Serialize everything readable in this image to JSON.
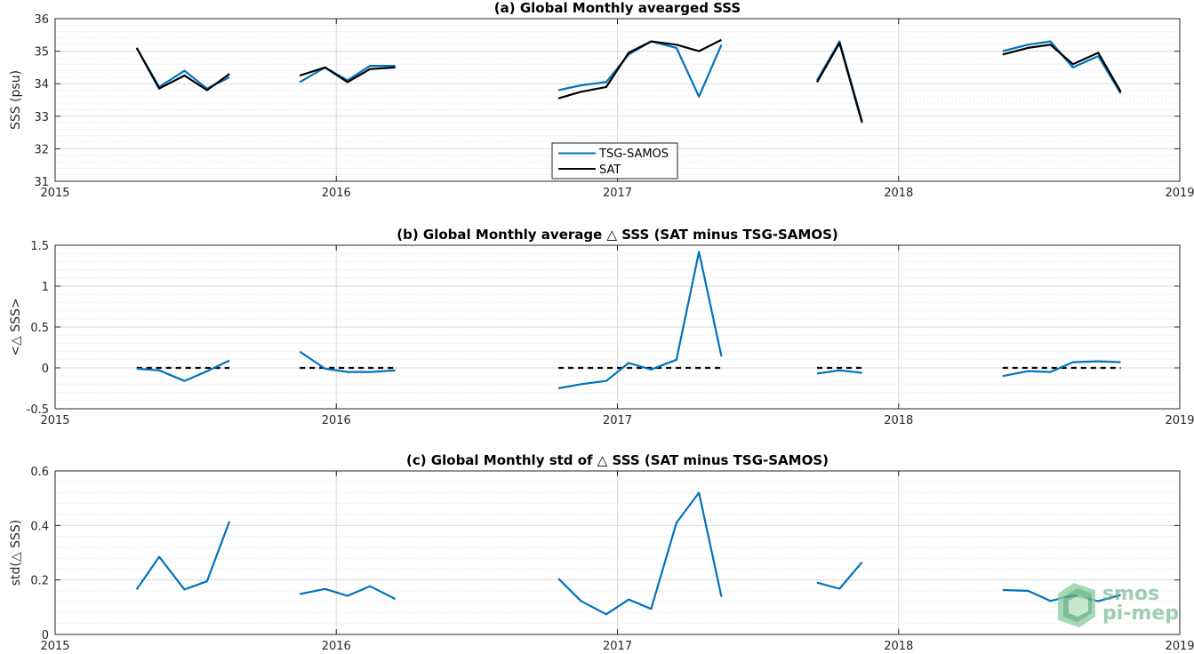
{
  "colors": {
    "tsg": "#0072BD",
    "sat": "#000000",
    "grid_major": "#d9d9d9",
    "grid_minor": "#ececec",
    "axis": "#262626",
    "logo": "#5fae7c"
  },
  "logo": {
    "line1": "smos",
    "line2": "pi-mep"
  },
  "chart_data": [
    {
      "type": "line",
      "title": "(a) Global Monthly avearged SSS",
      "xlabel": "",
      "ylabel": "SSS (psu)",
      "xlim": [
        2015,
        2019
      ],
      "ylim": [
        31,
        36
      ],
      "xticks": [
        2015,
        2016,
        2017,
        2018,
        2019
      ],
      "xticklabels": [
        "2015",
        "2016",
        "2017",
        "2018",
        "2019"
      ],
      "yticks": [
        31,
        32,
        33,
        34,
        35,
        36
      ],
      "yticklabels": [
        "31",
        "32",
        "33",
        "34",
        "35",
        "36"
      ],
      "grid": true,
      "legend": {
        "placement": "lower-center",
        "entries": [
          "TSG-SAMOS",
          "SAT"
        ]
      },
      "series": [
        {
          "name": "TSG-SAMOS",
          "color": "#0072BD",
          "segments": [
            [
              [
                2015.29,
                35.1
              ],
              [
                2015.37,
                33.9
              ],
              [
                2015.46,
                34.4
              ],
              [
                2015.54,
                33.85
              ],
              [
                2015.62,
                34.2
              ]
            ],
            [
              [
                2015.87,
                34.05
              ],
              [
                2015.96,
                34.5
              ],
              [
                2016.04,
                34.1
              ],
              [
                2016.12,
                34.55
              ],
              [
                2016.21,
                34.55
              ]
            ],
            [
              [
                2016.79,
                33.8
              ],
              [
                2016.87,
                33.95
              ],
              [
                2016.96,
                34.05
              ],
              [
                2017.04,
                34.9
              ],
              [
                2017.12,
                35.3
              ],
              [
                2017.21,
                35.1
              ],
              [
                2017.29,
                33.6
              ],
              [
                2017.37,
                35.2
              ]
            ],
            [
              [
                2017.71,
                34.1
              ],
              [
                2017.79,
                35.3
              ],
              [
                2017.87,
                32.85
              ]
            ],
            [
              [
                2018.37,
                35.0
              ],
              [
                2018.46,
                35.2
              ],
              [
                2018.54,
                35.3
              ],
              [
                2018.62,
                34.5
              ],
              [
                2018.71,
                34.85
              ],
              [
                2018.79,
                33.7
              ]
            ]
          ]
        },
        {
          "name": "SAT",
          "color": "#000000",
          "segments": [
            [
              [
                2015.29,
                35.1
              ],
              [
                2015.37,
                33.85
              ],
              [
                2015.46,
                34.25
              ],
              [
                2015.54,
                33.8
              ],
              [
                2015.62,
                34.3
              ]
            ],
            [
              [
                2015.87,
                34.25
              ],
              [
                2015.96,
                34.5
              ],
              [
                2016.04,
                34.05
              ],
              [
                2016.12,
                34.45
              ],
              [
                2016.21,
                34.5
              ]
            ],
            [
              [
                2016.79,
                33.55
              ],
              [
                2016.87,
                33.75
              ],
              [
                2016.96,
                33.9
              ],
              [
                2017.04,
                34.95
              ],
              [
                2017.12,
                35.3
              ],
              [
                2017.21,
                35.2
              ],
              [
                2017.29,
                35.0
              ],
              [
                2017.37,
                35.35
              ]
            ],
            [
              [
                2017.71,
                34.05
              ],
              [
                2017.79,
                35.25
              ],
              [
                2017.87,
                32.8
              ]
            ],
            [
              [
                2018.37,
                34.9
              ],
              [
                2018.46,
                35.1
              ],
              [
                2018.54,
                35.2
              ],
              [
                2018.62,
                34.6
              ],
              [
                2018.71,
                34.95
              ],
              [
                2018.79,
                33.75
              ]
            ]
          ]
        }
      ]
    },
    {
      "type": "line",
      "title": "(b) Global Monthly average △ SSS (SAT minus TSG-SAMOS)",
      "xlabel": "",
      "ylabel": "<△ SSS>",
      "xlim": [
        2015,
        2019
      ],
      "ylim": [
        -0.5,
        1.5
      ],
      "xticks": [
        2015,
        2016,
        2017,
        2018,
        2019
      ],
      "xticklabels": [
        "2015",
        "2016",
        "2017",
        "2018",
        "2019"
      ],
      "yticks": [
        -0.5,
        0,
        0.5,
        1,
        1.5
      ],
      "yticklabels": [
        "-0.5",
        "0",
        "0.5",
        "1",
        "1.5"
      ],
      "grid": true,
      "reference_lines": [
        {
          "y": 0,
          "x": [
            2015.29,
            2015.62
          ],
          "style": "dashed"
        },
        {
          "y": 0,
          "x": [
            2015.87,
            2016.21
          ],
          "style": "dashed"
        },
        {
          "y": 0,
          "x": [
            2016.79,
            2017.37
          ],
          "style": "dashed"
        },
        {
          "y": 0,
          "x": [
            2017.71,
            2017.87
          ],
          "style": "dashed"
        },
        {
          "y": 0,
          "x": [
            2018.37,
            2018.79
          ],
          "style": "dashed"
        }
      ],
      "series": [
        {
          "color": "#0072BD",
          "segments": [
            [
              [
                2015.29,
                -0.01
              ],
              [
                2015.37,
                -0.03
              ],
              [
                2015.46,
                -0.16
              ],
              [
                2015.54,
                -0.04
              ],
              [
                2015.62,
                0.09
              ]
            ],
            [
              [
                2015.87,
                0.2
              ],
              [
                2015.96,
                -0.01
              ],
              [
                2016.04,
                -0.05
              ],
              [
                2016.12,
                -0.05
              ],
              [
                2016.21,
                -0.03
              ]
            ],
            [
              [
                2016.79,
                -0.25
              ],
              [
                2016.87,
                -0.2
              ],
              [
                2016.96,
                -0.16
              ],
              [
                2017.04,
                0.06
              ],
              [
                2017.12,
                -0.02
              ],
              [
                2017.21,
                0.1
              ],
              [
                2017.29,
                1.42
              ],
              [
                2017.37,
                0.14
              ]
            ],
            [
              [
                2017.71,
                -0.07
              ],
              [
                2017.79,
                -0.03
              ],
              [
                2017.87,
                -0.06
              ]
            ],
            [
              [
                2018.37,
                -0.1
              ],
              [
                2018.46,
                -0.04
              ],
              [
                2018.54,
                -0.05
              ],
              [
                2018.62,
                0.07
              ],
              [
                2018.71,
                0.08
              ],
              [
                2018.79,
                0.07
              ]
            ]
          ]
        }
      ]
    },
    {
      "type": "line",
      "title": "(c) Global Monthly std of △ SSS (SAT minus TSG-SAMOS)",
      "xlabel": "",
      "ylabel": "std(△ SSS)",
      "xlim": [
        2015,
        2019
      ],
      "ylim": [
        0,
        0.6
      ],
      "xticks": [
        2015,
        2016,
        2017,
        2018,
        2019
      ],
      "xticklabels": [
        "2015",
        "2016",
        "2017",
        "2018",
        "2019"
      ],
      "yticks": [
        0,
        0.2,
        0.4,
        0.6
      ],
      "yticklabels": [
        "0",
        "0.2",
        "0.4",
        "0.6"
      ],
      "grid": true,
      "series": [
        {
          "color": "#0072BD",
          "segments": [
            [
              [
                2015.29,
                0.165
              ],
              [
                2015.37,
                0.285
              ],
              [
                2015.46,
                0.165
              ],
              [
                2015.54,
                0.195
              ],
              [
                2015.62,
                0.415
              ]
            ],
            [
              [
                2015.87,
                0.148
              ],
              [
                2015.96,
                0.167
              ],
              [
                2016.04,
                0.142
              ],
              [
                2016.12,
                0.177
              ],
              [
                2016.21,
                0.13
              ]
            ],
            [
              [
                2016.79,
                0.205
              ],
              [
                2016.87,
                0.123
              ],
              [
                2016.96,
                0.074
              ],
              [
                2017.04,
                0.128
              ],
              [
                2017.12,
                0.094
              ],
              [
                2017.21,
                0.41
              ],
              [
                2017.29,
                0.52
              ],
              [
                2017.37,
                0.138
              ]
            ],
            [
              [
                2017.71,
                0.19
              ],
              [
                2017.79,
                0.168
              ],
              [
                2017.87,
                0.265
              ]
            ],
            [
              [
                2018.37,
                0.163
              ],
              [
                2018.46,
                0.16
              ],
              [
                2018.54,
                0.123
              ],
              [
                2018.62,
                0.143
              ],
              [
                2018.71,
                0.122
              ],
              [
                2018.79,
                0.145
              ]
            ]
          ]
        }
      ]
    }
  ]
}
